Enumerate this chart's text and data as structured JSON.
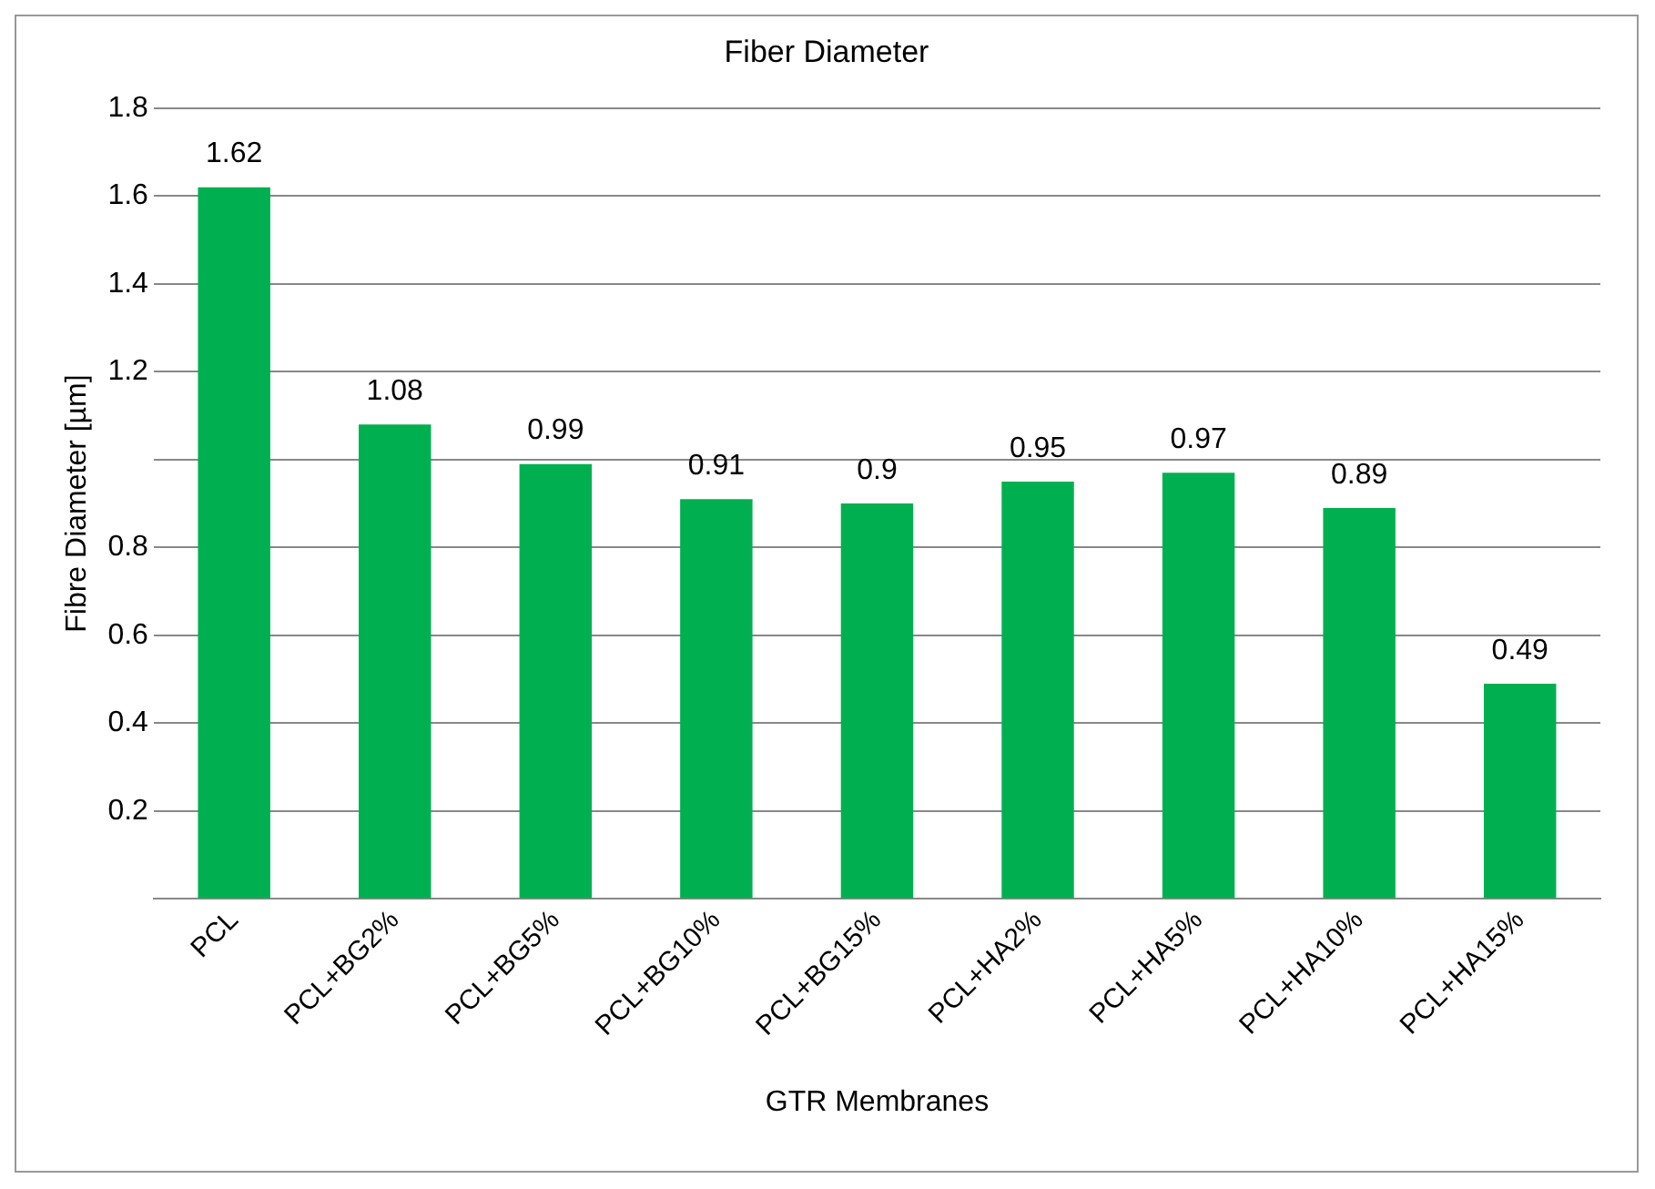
{
  "chart_data": {
    "type": "bar",
    "title": "Fiber Diameter",
    "xlabel": "GTR Membranes",
    "ylabel": "Fibre Diameter [µm]",
    "categories": [
      "PCL",
      "PCL+BG2%",
      "PCL+BG5%",
      "PCL+BG10%",
      "PCL+BG15%",
      "PCL+HA2%",
      "PCL+HA5%",
      "PCL+HA10%",
      "PCL+HA15%"
    ],
    "values": [
      1.62,
      1.08,
      0.99,
      0.91,
      0.9,
      0.95,
      0.97,
      0.89,
      0.49
    ],
    "color": "#00b050",
    "ylim": [
      0,
      1.8
    ],
    "yticks": [
      {
        "value": 0,
        "label": null
      },
      0.2,
      0.4,
      0.6,
      0.8,
      {
        "value": 1.0,
        "label": null
      },
      1.2,
      1.4,
      1.6,
      1.8
    ],
    "grid": "y",
    "data_labels": true,
    "legend": false
  }
}
